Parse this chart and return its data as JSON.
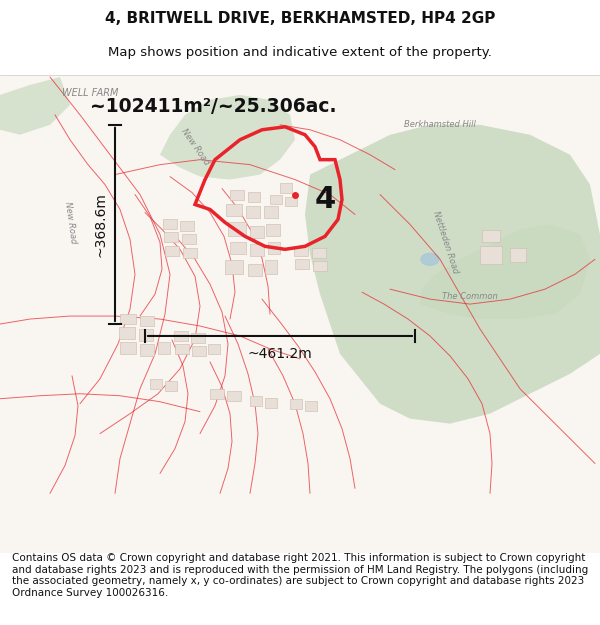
{
  "title_line1": "4, BRITWELL DRIVE, BERKHAMSTED, HP4 2GP",
  "title_line2": "Map shows position and indicative extent of the property.",
  "area_text": "~102411m²/~25.306ac.",
  "label_number": "4",
  "dim_width": "~461.2m",
  "dim_height": "~368.6m",
  "footer_text": "Contains OS data © Crown copyright and database right 2021. This information is subject to Crown copyright and database rights 2023 and is reproduced with the permission of HM Land Registry. The polygons (including the associated geometry, namely x, y co-ordinates) are subject to Crown copyright and database rights 2023 Ordnance Survey 100026316.",
  "bg_color": "#f5f0eb",
  "map_bg": "#f9f6f2",
  "green_color": "#c8d9c0",
  "red_color": "#e8232a",
  "road_color": "#e8232a",
  "title_fontsize": 11,
  "subtitle_fontsize": 9.5,
  "footer_fontsize": 7.5,
  "map_extent": [
    0,
    600,
    60,
    540
  ]
}
